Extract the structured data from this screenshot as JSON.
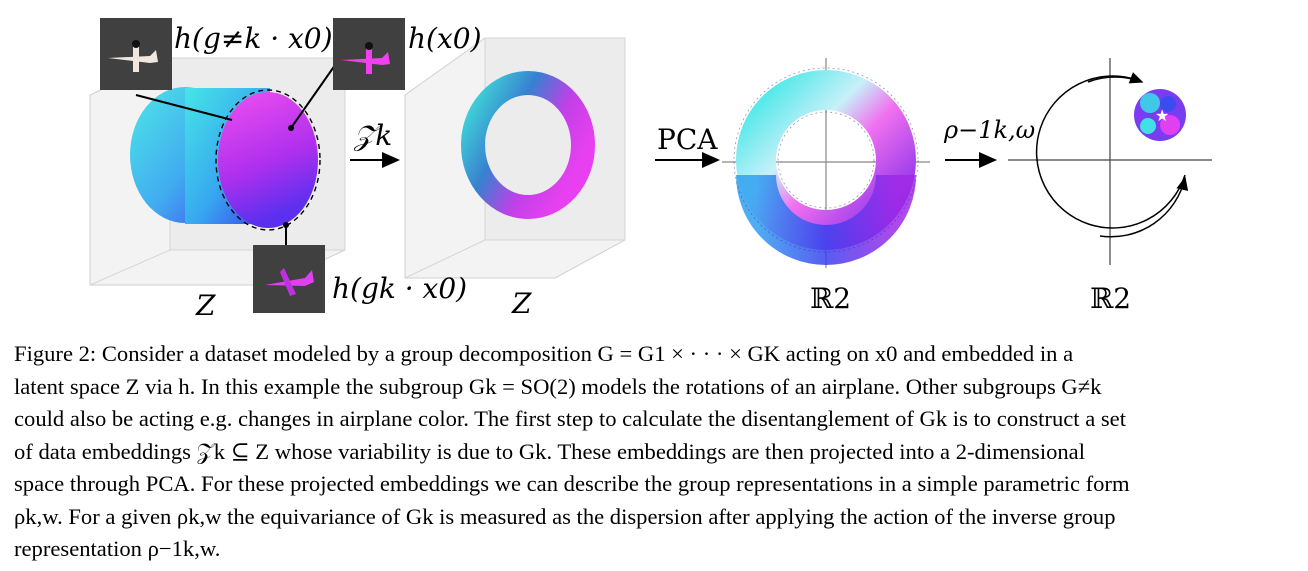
{
  "figure": {
    "labels": {
      "h_g_neq_k": "h(g≠k · x0)",
      "h_x0": "h(x0)",
      "h_gk": "h(gk · x0)",
      "z_left": "Z",
      "z_mid": "Z",
      "arrow_zk": "𝒵k",
      "arrow_pca": "PCA",
      "arrow_rho_inv": "ρ−1k,ω",
      "r2_left": "ℝ2",
      "r2_right": "ℝ2"
    },
    "colors": {
      "cyan": "#40e0e8",
      "blue": "#3a4cf0",
      "magenta": "#e040f0",
      "purple": "#9a28e8"
    }
  },
  "caption": {
    "lines": [
      "Figure 2: Consider a dataset modeled by a group decomposition G = G1 × · · · × GK acting on x0 and embedded in a",
      "latent space Z via h. In this example the subgroup Gk = SO(2) models the rotations of an airplane. Other subgroups G≠k",
      "could also be acting e.g. changes in airplane color. The first step to calculate the disentanglement of Gk is to construct a set",
      "of data embeddings 𝒵k ⊆ Z whose variability is due to Gk. These embeddings are then projected into a 2-dimensional",
      "space through PCA. For these projected embeddings we can describe the group representations in a simple parametric form",
      "ρk,w. For a given ρk,w the equivariance of Gk is measured as the dispersion after applying the action of the inverse group",
      "representation ρ−1k,w."
    ]
  }
}
